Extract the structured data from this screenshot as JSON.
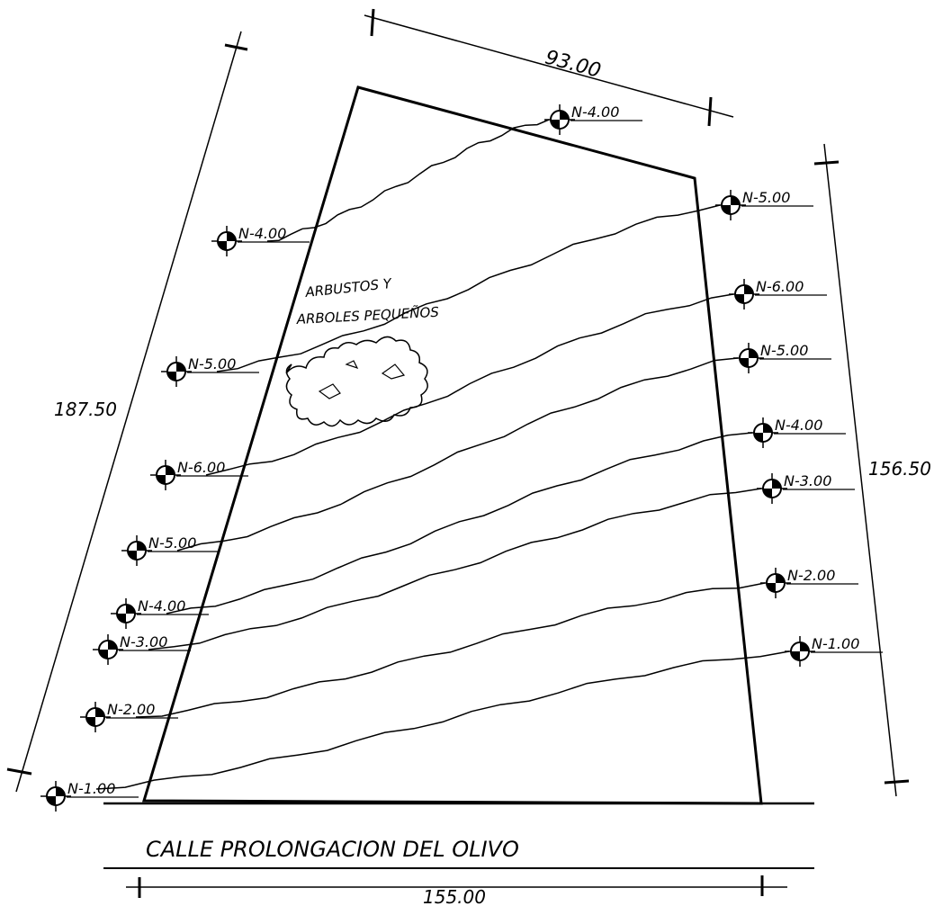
{
  "dimensions": {
    "top": "93.00",
    "left": "187.50",
    "right": "156.50",
    "bottom": "155.00"
  },
  "street": "CALLE PROLONGACION DEL OLIVO",
  "vegetation": {
    "line1": "ARBUSTOS Y",
    "line2": "ARBOLES PEQUEÑOS"
  },
  "levels": {
    "left": [
      "N-4.00",
      "N-5.00",
      "N-6.00",
      "N-5.00",
      "N-4.00",
      "N-3.00",
      "N-2.00",
      "N-1.00"
    ],
    "right": [
      "N-4.00",
      "N-5.00",
      "N-6.00",
      "N-5.00",
      "N-4.00",
      "N-3.00",
      "N-2.00",
      "N-1.00"
    ]
  }
}
